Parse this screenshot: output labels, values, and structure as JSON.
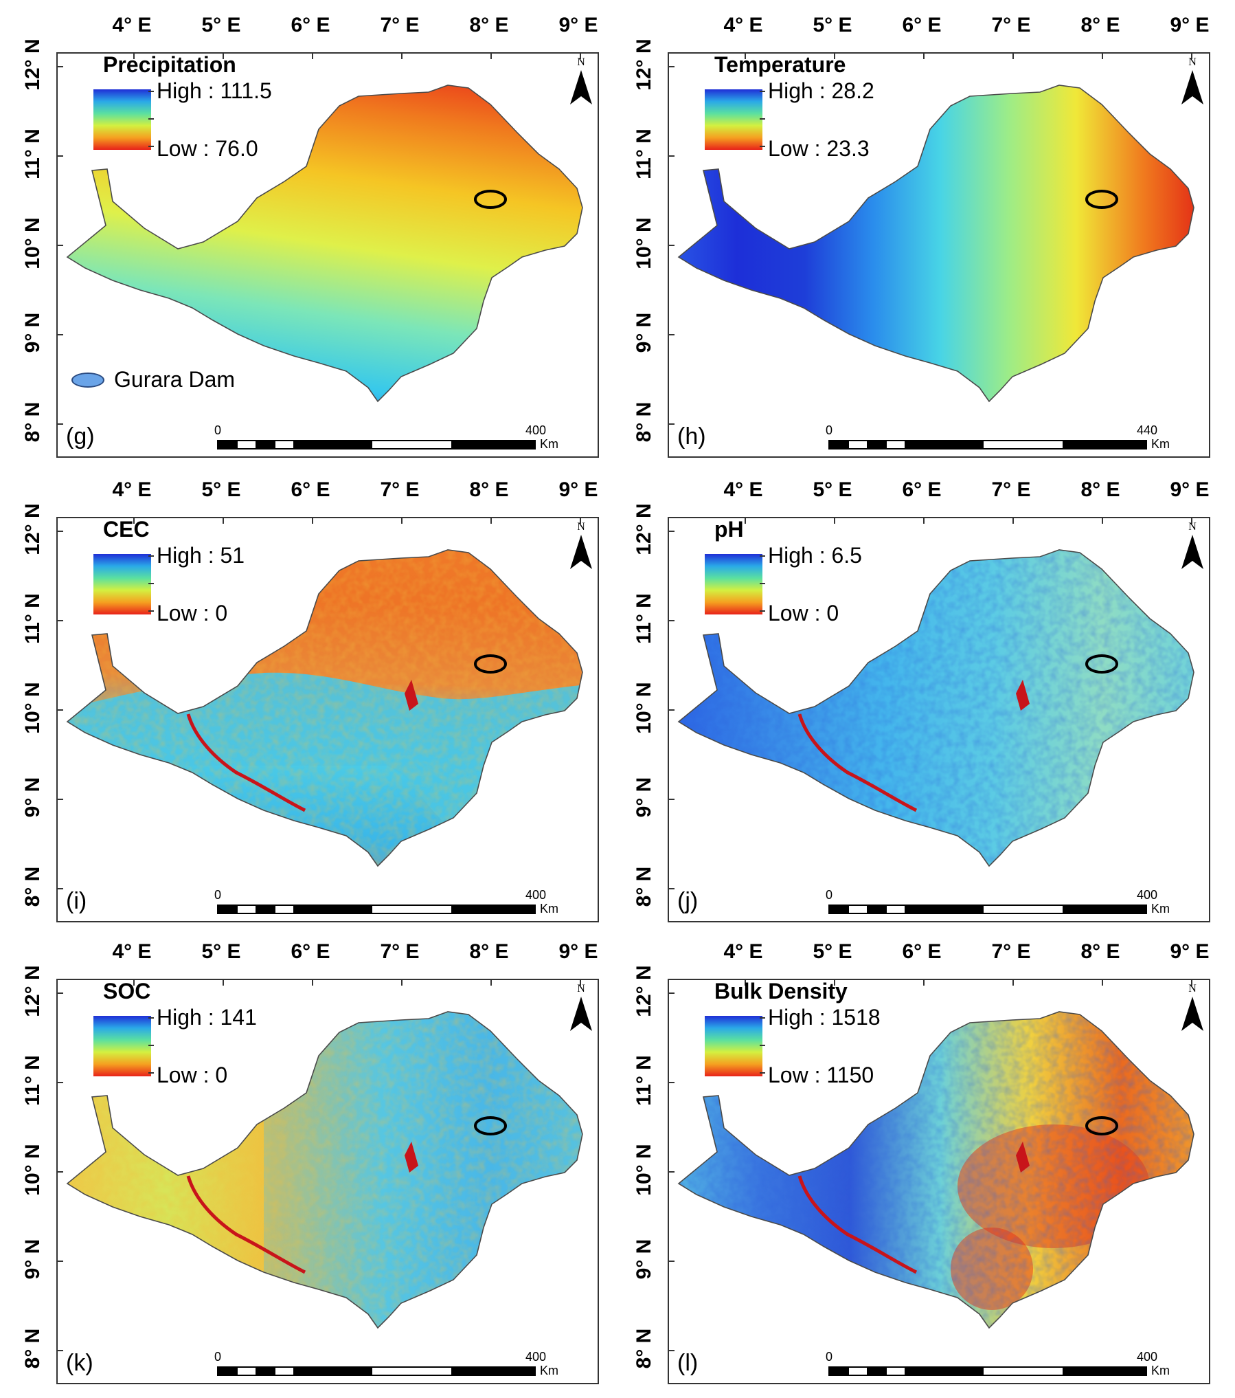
{
  "figure": {
    "lon_labels": [
      "4° E",
      "5° E",
      "6° E",
      "7° E",
      "8° E",
      "9° E"
    ],
    "lat_labels": [
      "12° N",
      "11° N",
      "10° N",
      "9° N",
      "8° N"
    ],
    "north_label": "N",
    "dam_legend_label": "Gurara Dam",
    "colors": {
      "frame": "#333333",
      "outline": "#4a4a4a",
      "dam_marker": "#000000",
      "dam_fill": "#6aa4e8"
    }
  },
  "panels": [
    {
      "id": "g",
      "title": "Precipitation",
      "high_label": "High : 111.5",
      "low_label": "Low : 76.0",
      "panel_label": "(g)",
      "scale_zero": "0",
      "scale_max": "400",
      "scale_unit": "Km",
      "ramp_colors": [
        "#1f2fd6",
        "#2aa9e8",
        "#5be0a0",
        "#d4f040",
        "#f5a020",
        "#e8221a"
      ],
      "map_gradient": {
        "type": "diagonal",
        "stops": [
          "#e8221a",
          "#f07a1e",
          "#f5c524",
          "#dff04a",
          "#7ce6b8",
          "#36c8ec",
          "#1f3fe0"
        ]
      },
      "has_dam_legend": true
    },
    {
      "id": "h",
      "title": "Temperature",
      "high_label": "High : 28.2",
      "low_label": "Low : 23.3",
      "panel_label": "(h)",
      "scale_zero": "0",
      "scale_max": "440",
      "scale_unit": "Km",
      "ramp_colors": [
        "#1f2fd6",
        "#2aa9e8",
        "#5be0a0",
        "#d4f040",
        "#f5a020",
        "#e8221a"
      ],
      "map_gradient": {
        "type": "horizontal",
        "stops": [
          "#2a58e6",
          "#1d2fd8",
          "#1e3ed8",
          "#2a8cec",
          "#48d4e6",
          "#9cec88",
          "#f0e838",
          "#f07a1e",
          "#e01a14"
        ]
      },
      "has_dam_legend": false
    },
    {
      "id": "i",
      "title": "CEC",
      "high_label": "High : 51",
      "low_label": "Low : 0",
      "panel_label": "(i)",
      "scale_zero": "0",
      "scale_max": "400",
      "scale_unit": "Km",
      "ramp_colors": [
        "#1f2fd6",
        "#2aa9e8",
        "#5be0a0",
        "#d4f040",
        "#f5a020",
        "#e8221a"
      ],
      "map_gradient": {
        "type": "split",
        "stops": [
          "#f07c2a",
          "#ee7426",
          "#e98a3a",
          "#4ccbe6",
          "#3ab6e8",
          "#e98a3a"
        ]
      },
      "has_dam_legend": false
    },
    {
      "id": "j",
      "title": "pH",
      "high_label": "High : 6.5",
      "low_label": "Low : 0",
      "panel_label": "(j)",
      "scale_zero": "0",
      "scale_max": "400",
      "scale_unit": "Km",
      "ramp_colors": [
        "#1f2fd6",
        "#2aa9e8",
        "#5be0a0",
        "#d4f040",
        "#f5a020",
        "#e8221a"
      ],
      "map_gradient": {
        "type": "horizontal",
        "stops": [
          "#2b62e4",
          "#3a8ee8",
          "#44b6ec",
          "#5ccbe4",
          "#8fdcc4",
          "#6bd0dc"
        ]
      },
      "has_dam_legend": false
    },
    {
      "id": "k",
      "title": "SOC",
      "high_label": "High : 141",
      "low_label": "Low : 0",
      "panel_label": "(k)",
      "scale_zero": "0",
      "scale_max": "400",
      "scale_unit": "Km",
      "ramp_colors": [
        "#1f2fd6",
        "#2aa9e8",
        "#5be0a0",
        "#d4f040",
        "#f5a020",
        "#e8221a"
      ],
      "map_gradient": {
        "type": "horizontal",
        "stops": [
          "#f0c848",
          "#d8e458",
          "#f0c040",
          "#5ccbe0",
          "#48b4e8",
          "#62c8d8"
        ]
      },
      "has_dam_legend": false
    },
    {
      "id": "l",
      "title": "Bulk Density",
      "high_label": "High : 1518",
      "low_label": "Low : 1150",
      "panel_label": "(l)",
      "scale_zero": "0",
      "scale_max": "400",
      "scale_unit": "Km",
      "ramp_colors": [
        "#1f2fd6",
        "#2aa9e8",
        "#5be0a0",
        "#d4f040",
        "#f5a020",
        "#e8221a"
      ],
      "map_gradient": {
        "type": "horizontal",
        "stops": [
          "#54b8e4",
          "#3a76e0",
          "#2f58d8",
          "#6cd0d8",
          "#f0d040",
          "#ea6a20",
          "#f0a030"
        ]
      },
      "has_dam_legend": false
    }
  ]
}
